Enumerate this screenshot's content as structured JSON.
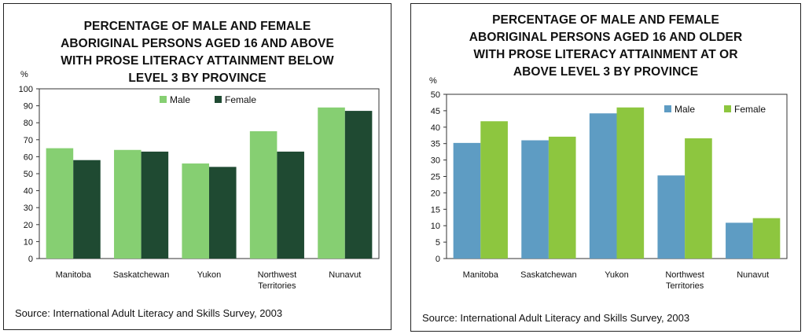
{
  "chart_data": [
    {
      "type": "bar",
      "title_lines": [
        "PERCENTAGE OF MALE AND FEMALE",
        "ABORIGINAL PERSONS AGED 16 AND ABOVE",
        "WITH PROSE LITERACY ATTAINMENT BELOW",
        "LEVEL 3 BY PROVINCE"
      ],
      "ylabel": "%",
      "ylim": [
        0,
        100
      ],
      "yticks": [
        0,
        10,
        20,
        30,
        40,
        50,
        60,
        70,
        80,
        90,
        100
      ],
      "categories": [
        [
          "Manitoba"
        ],
        [
          "Saskatchewan"
        ],
        [
          "Yukon"
        ],
        [
          "Northwest",
          "Territories"
        ],
        [
          "Nunavut"
        ]
      ],
      "series": [
        {
          "name": "Male",
          "color": "#86cf72",
          "values": [
            65,
            64,
            56,
            75,
            89
          ]
        },
        {
          "name": "Female",
          "color": "#1f4a32",
          "values": [
            58,
            63,
            54,
            63,
            87
          ]
        }
      ],
      "legend": "top",
      "source": "Source: International Adult Literacy and Skills Survey, 2003"
    },
    {
      "type": "bar",
      "title_lines": [
        "PERCENTAGE OF MALE AND FEMALE",
        "ABORIGINAL PERSONS AGED 16 AND OLDER",
        "WITH PROSE LITERACY ATTAINMENT AT OR",
        "ABOVE LEVEL 3 BY PROVINCE"
      ],
      "ylabel": "%",
      "ylim": [
        0,
        50
      ],
      "yticks": [
        0,
        5,
        10,
        15,
        20,
        25,
        30,
        35,
        40,
        45,
        50
      ],
      "categories": [
        [
          "Manitoba"
        ],
        [
          "Saskatchewan"
        ],
        [
          "Yukon"
        ],
        [
          "Northwest",
          "Territories"
        ],
        [
          "Nunavut"
        ]
      ],
      "series": [
        {
          "name": "Male",
          "color": "#5e9cc3",
          "values": [
            35.2,
            36,
            44.2,
            25.3,
            10.9
          ]
        },
        {
          "name": "Female",
          "color": "#8dc63f",
          "values": [
            41.8,
            37.1,
            46,
            36.6,
            12.3
          ]
        }
      ],
      "legend": "top",
      "source": "Source: International Adult Literacy and Skills Survey, 2003"
    }
  ]
}
